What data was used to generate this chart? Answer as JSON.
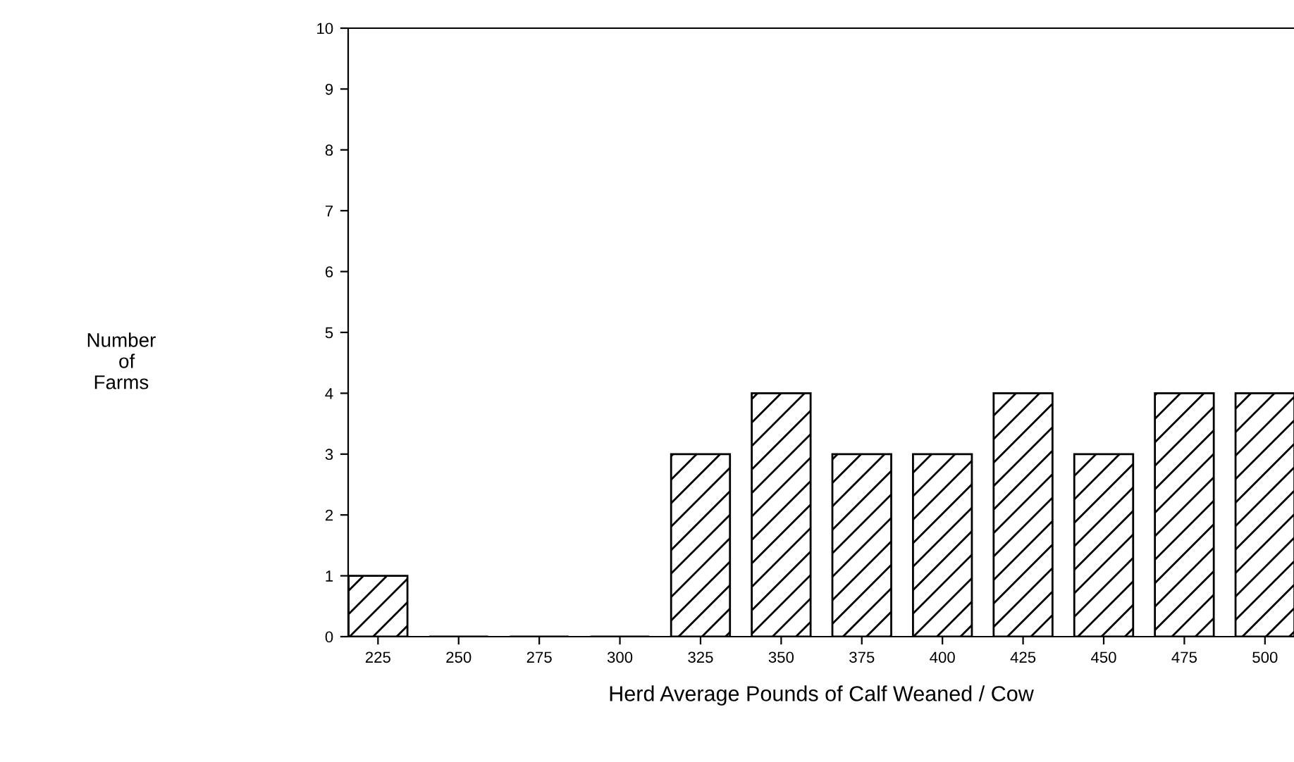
{
  "chart_data": {
    "type": "bar",
    "xlabel": "Herd Average Pounds of Calf Weaned / Cow",
    "annotations": [
      "Number\n  of\nFarms"
    ],
    "categories": [
      "225",
      "250",
      "275",
      "300",
      "325",
      "350",
      "375",
      "400",
      "425",
      "450",
      "475",
      "500"
    ],
    "values": [
      1,
      0,
      0,
      0,
      3,
      4,
      3,
      3,
      4,
      3,
      4,
      4
    ],
    "color": "#000000",
    "ylim": [
      0,
      10
    ],
    "yticks": [
      0,
      1,
      2,
      3,
      4,
      5,
      6,
      7,
      8,
      9,
      10
    ],
    "grid": false
  }
}
